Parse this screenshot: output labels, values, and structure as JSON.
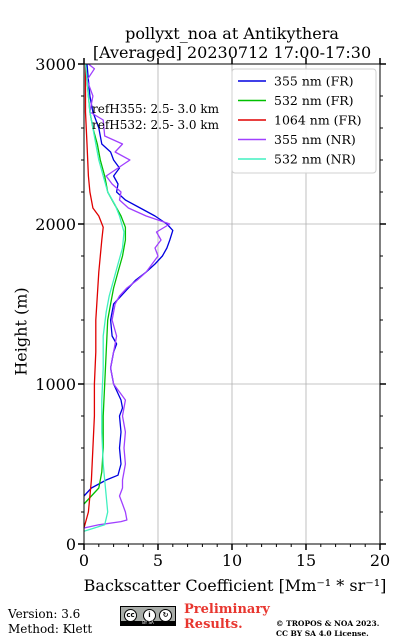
{
  "title_line1": "pollyxt_noa at Antikythera",
  "title_line2": "[Averaged] 20230712 17:00-17:30",
  "footer": {
    "version": "Version: 3.6",
    "method": "Method: Klett",
    "preliminary_line1": "Preliminary",
    "preliminary_line2": "Results.",
    "copyright_line1": "© TROPOS & NOA 2023.",
    "copyright_line2": "CC BY SA 4.0 License.",
    "cc_badge_text": "BY   SA"
  },
  "chart_data": {
    "type": "line",
    "title": "pollyxt_noa at Antikythera [Averaged] 20230712 17:00-17:30",
    "xlabel": "Backscatter Coefficient [Mm⁻¹ * sr⁻¹]",
    "ylabel": "Height (m)",
    "xlim": [
      0,
      20
    ],
    "ylim": [
      0,
      3000
    ],
    "xticks": [
      "0",
      "5",
      "10",
      "15",
      "20"
    ],
    "yticks": [
      "0",
      "1000",
      "2000",
      "3000"
    ],
    "grid": true,
    "legend_position": "top-right",
    "annotations": [
      "refH355:  2.5- 3.0 km",
      "refH532:  2.5- 3.0 km"
    ],
    "series": [
      {
        "name": "355 nm (FR)",
        "color": "#0000e0",
        "points": [
          [
            0,
            300
          ],
          [
            0.5,
            350
          ],
          [
            1.5,
            400
          ],
          [
            2.3,
            430
          ],
          [
            2.5,
            500
          ],
          [
            2.4,
            600
          ],
          [
            2.5,
            700
          ],
          [
            2.4,
            800
          ],
          [
            2.6,
            850
          ],
          [
            2.5,
            900
          ],
          [
            2.0,
            1000
          ],
          [
            1.8,
            1100
          ],
          [
            2.0,
            1200
          ],
          [
            2.2,
            1250
          ],
          [
            1.9,
            1300
          ],
          [
            1.8,
            1400
          ],
          [
            2.0,
            1500
          ],
          [
            2.5,
            1550
          ],
          [
            3.0,
            1600
          ],
          [
            3.5,
            1650
          ],
          [
            4.2,
            1700
          ],
          [
            4.8,
            1750
          ],
          [
            5.3,
            1800
          ],
          [
            5.6,
            1850
          ],
          [
            5.8,
            1900
          ],
          [
            6.0,
            1960
          ],
          [
            5.6,
            2000
          ],
          [
            4.8,
            2050
          ],
          [
            3.8,
            2100
          ],
          [
            2.8,
            2150
          ],
          [
            2.2,
            2200
          ],
          [
            2.3,
            2250
          ],
          [
            2.0,
            2300
          ],
          [
            2.4,
            2350
          ],
          [
            2.0,
            2400
          ],
          [
            1.8,
            2450
          ],
          [
            1.2,
            2500
          ],
          [
            1.0,
            2600
          ],
          [
            0.6,
            2700
          ],
          [
            0.4,
            2800
          ],
          [
            0.3,
            2900
          ],
          [
            0.2,
            3000
          ]
        ]
      },
      {
        "name": "532 nm (FR)",
        "color": "#00c000",
        "points": [
          [
            0,
            250
          ],
          [
            0.5,
            300
          ],
          [
            1.0,
            350
          ],
          [
            1.2,
            450
          ],
          [
            1.3,
            600
          ],
          [
            1.3,
            800
          ],
          [
            1.4,
            1000
          ],
          [
            1.5,
            1200
          ],
          [
            1.6,
            1400
          ],
          [
            1.8,
            1500
          ],
          [
            2.0,
            1600
          ],
          [
            2.3,
            1700
          ],
          [
            2.6,
            1800
          ],
          [
            2.8,
            1900
          ],
          [
            2.8,
            1980
          ],
          [
            2.5,
            2050
          ],
          [
            2.2,
            2100
          ],
          [
            1.9,
            2150
          ],
          [
            1.6,
            2200
          ],
          [
            1.4,
            2300
          ],
          [
            1.1,
            2400
          ],
          [
            0.9,
            2500
          ],
          [
            0.6,
            2600
          ],
          [
            0.4,
            2700
          ],
          [
            0.3,
            2800
          ],
          [
            0.2,
            2900
          ],
          [
            0.1,
            3000
          ]
        ]
      },
      {
        "name": "1064 nm (FR)",
        "color": "#e00000",
        "points": [
          [
            0,
            100
          ],
          [
            0.3,
            200
          ],
          [
            0.5,
            400
          ],
          [
            0.6,
            600
          ],
          [
            0.7,
            800
          ],
          [
            0.7,
            1000
          ],
          [
            0.8,
            1200
          ],
          [
            0.8,
            1400
          ],
          [
            0.9,
            1550
          ],
          [
            1.0,
            1700
          ],
          [
            1.1,
            1800
          ],
          [
            1.2,
            1900
          ],
          [
            1.3,
            1980
          ],
          [
            1.0,
            2050
          ],
          [
            0.6,
            2100
          ],
          [
            0.4,
            2200
          ],
          [
            0.3,
            2300
          ],
          [
            0.2,
            2500
          ],
          [
            0.1,
            2700
          ],
          [
            0.1,
            3000
          ]
        ]
      },
      {
        "name": "355 nm (NR)",
        "color": "#a040ff",
        "points": [
          [
            0,
            100
          ],
          [
            1.0,
            120
          ],
          [
            2.5,
            140
          ],
          [
            2.9,
            150
          ],
          [
            2.8,
            200
          ],
          [
            2.6,
            250
          ],
          [
            2.4,
            300
          ],
          [
            2.6,
            350
          ],
          [
            2.6,
            400
          ],
          [
            2.8,
            500
          ],
          [
            2.7,
            600
          ],
          [
            2.8,
            700
          ],
          [
            2.6,
            800
          ],
          [
            2.8,
            900
          ],
          [
            2.0,
            1000
          ],
          [
            1.8,
            1100
          ],
          [
            2.0,
            1200
          ],
          [
            2.2,
            1300
          ],
          [
            1.9,
            1400
          ],
          [
            2.1,
            1500
          ],
          [
            2.4,
            1550
          ],
          [
            2.9,
            1600
          ],
          [
            3.6,
            1650
          ],
          [
            4.2,
            1700
          ],
          [
            4.6,
            1750
          ],
          [
            5.0,
            1800
          ],
          [
            4.8,
            1850
          ],
          [
            5.2,
            1900
          ],
          [
            4.9,
            1950
          ],
          [
            5.8,
            2000
          ],
          [
            4.2,
            2050
          ],
          [
            3.0,
            2100
          ],
          [
            2.4,
            2150
          ],
          [
            2.5,
            2200
          ],
          [
            1.9,
            2250
          ],
          [
            1.5,
            2300
          ],
          [
            2.3,
            2350
          ],
          [
            3.1,
            2400
          ],
          [
            2.1,
            2450
          ],
          [
            2.6,
            2500
          ],
          [
            1.4,
            2550
          ],
          [
            1.3,
            2650
          ],
          [
            0.4,
            2700
          ],
          [
            0.6,
            2800
          ],
          [
            0.2,
            2900
          ],
          [
            0.7,
            2970
          ],
          [
            0.3,
            3000
          ]
        ]
      },
      {
        "name": "532 nm (NR)",
        "color": "#40f0c0",
        "points": [
          [
            0,
            80
          ],
          [
            0.7,
            100
          ],
          [
            1.4,
            120
          ],
          [
            1.6,
            200
          ],
          [
            1.5,
            300
          ],
          [
            1.4,
            400
          ],
          [
            1.3,
            500
          ],
          [
            1.2,
            700
          ],
          [
            1.2,
            900
          ],
          [
            1.3,
            1100
          ],
          [
            1.3,
            1300
          ],
          [
            1.5,
            1450
          ],
          [
            1.7,
            1550
          ],
          [
            2.0,
            1650
          ],
          [
            2.3,
            1750
          ],
          [
            2.6,
            1850
          ],
          [
            2.7,
            1950
          ],
          [
            2.4,
            2050
          ],
          [
            2.1,
            2120
          ],
          [
            1.6,
            2200
          ],
          [
            1.3,
            2300
          ],
          [
            1.0,
            2400
          ],
          [
            0.8,
            2500
          ],
          [
            0.6,
            2600
          ],
          [
            0.4,
            2700
          ],
          [
            0.3,
            2800
          ],
          [
            0.2,
            2900
          ],
          [
            0.1,
            3000
          ]
        ]
      }
    ]
  }
}
